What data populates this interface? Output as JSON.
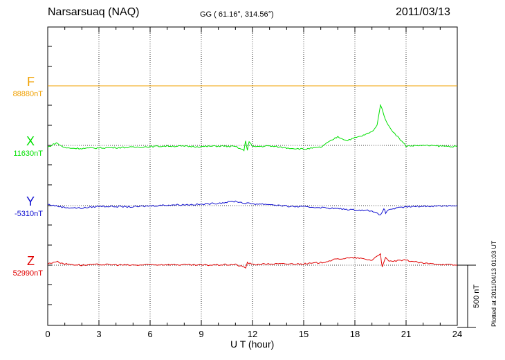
{
  "header": {
    "station": "Narsarsuaq (NAQ)",
    "coords": "GG ( 61.16°, 314.56°)",
    "date": "2011/03/13"
  },
  "footer": {
    "plotted": "Plotted at 2011/04/13 01:03 UT"
  },
  "chart_data": {
    "type": "line",
    "xlabel": "U T (hour)",
    "xlim": [
      0,
      24
    ],
    "xticks": [
      0,
      3,
      6,
      9,
      12,
      15,
      18,
      21,
      24
    ],
    "grid": "vertical dotted",
    "scale_bar": {
      "label": "500 nT",
      "value_nT": 500
    },
    "series": [
      {
        "name": "F",
        "baseline_label": "88880nT",
        "baseline_nT": 88880,
        "color": "#f0a000",
        "points": [
          [
            0,
            0
          ],
          [
            3,
            0
          ],
          [
            6,
            0
          ],
          [
            9,
            0
          ],
          [
            12,
            0
          ],
          [
            15,
            0
          ],
          [
            18,
            0
          ],
          [
            21,
            0
          ],
          [
            24,
            0
          ]
        ]
      },
      {
        "name": "X",
        "baseline_label": "11630nT",
        "baseline_nT": 11630,
        "color": "#00e000",
        "points": [
          [
            0,
            -15
          ],
          [
            0.5,
            20
          ],
          [
            1,
            -20
          ],
          [
            2,
            -25
          ],
          [
            3,
            -20
          ],
          [
            5,
            -15
          ],
          [
            7,
            -5
          ],
          [
            9,
            -10
          ],
          [
            10,
            -5
          ],
          [
            11,
            -10
          ],
          [
            11.5,
            -40
          ],
          [
            11.6,
            40
          ],
          [
            11.7,
            -40
          ],
          [
            11.8,
            30
          ],
          [
            12,
            -10
          ],
          [
            13,
            -5
          ],
          [
            14,
            -20
          ],
          [
            15,
            -30
          ],
          [
            16,
            -15
          ],
          [
            16.5,
            30
          ],
          [
            17,
            70
          ],
          [
            17.5,
            40
          ],
          [
            18,
            60
          ],
          [
            18.5,
            80
          ],
          [
            19,
            110
          ],
          [
            19.3,
            160
          ],
          [
            19.5,
            330
          ],
          [
            19.7,
            240
          ],
          [
            20,
            150
          ],
          [
            20.5,
            70
          ],
          [
            21,
            -5
          ],
          [
            22,
            0
          ],
          [
            23,
            -5
          ],
          [
            24,
            -10
          ]
        ]
      },
      {
        "name": "Y",
        "baseline_label": "-5310nT",
        "baseline_nT": -5310,
        "color": "#1010d0",
        "points": [
          [
            0,
            10
          ],
          [
            1,
            -15
          ],
          [
            2,
            -20
          ],
          [
            3,
            -5
          ],
          [
            5,
            -10
          ],
          [
            7,
            5
          ],
          [
            9,
            10
          ],
          [
            10,
            20
          ],
          [
            11,
            35
          ],
          [
            11.5,
            20
          ],
          [
            12,
            15
          ],
          [
            13,
            10
          ],
          [
            14,
            -5
          ],
          [
            15,
            -10
          ],
          [
            16,
            -15
          ],
          [
            17,
            -25
          ],
          [
            18,
            -35
          ],
          [
            19,
            -40
          ],
          [
            19.5,
            -80
          ],
          [
            19.7,
            -20
          ],
          [
            19.8,
            -60
          ],
          [
            20,
            -30
          ],
          [
            21,
            -10
          ],
          [
            22,
            -5
          ],
          [
            24,
            0
          ]
        ]
      },
      {
        "name": "Z",
        "baseline_label": "52990nT",
        "baseline_nT": 52990,
        "color": "#e00000",
        "points": [
          [
            0,
            10
          ],
          [
            0.5,
            30
          ],
          [
            1,
            10
          ],
          [
            2,
            0
          ],
          [
            3,
            5
          ],
          [
            5,
            0
          ],
          [
            7,
            5
          ],
          [
            9,
            0
          ],
          [
            11,
            5
          ],
          [
            11.6,
            -20
          ],
          [
            11.7,
            20
          ],
          [
            12,
            5
          ],
          [
            13,
            10
          ],
          [
            15,
            10
          ],
          [
            16,
            20
          ],
          [
            17,
            50
          ],
          [
            18,
            60
          ],
          [
            19,
            40
          ],
          [
            19.5,
            95
          ],
          [
            19.6,
            -20
          ],
          [
            19.8,
            60
          ],
          [
            20,
            30
          ],
          [
            21,
            40
          ],
          [
            22,
            15
          ],
          [
            24,
            0
          ]
        ]
      }
    ]
  }
}
